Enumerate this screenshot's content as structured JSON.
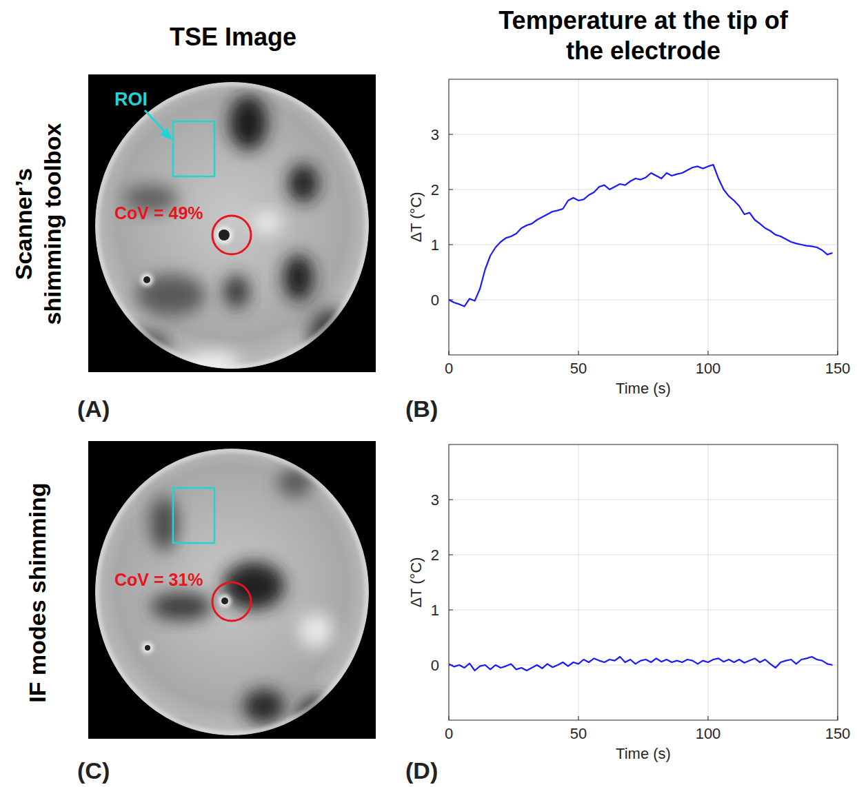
{
  "column_titles": [
    "TSE Image",
    "Temperature at the tip of the electrode"
  ],
  "row_labels": [
    "Scanner’s shimming toolbox",
    "IF modes shimming"
  ],
  "panel_labels": [
    "(A)",
    "(B)",
    "(C)",
    "(D)"
  ],
  "images": [
    {
      "roi_label": "ROI",
      "cov_label": "CoV = 49%"
    },
    {
      "cov_label": "CoV = 31%"
    }
  ],
  "chart_data": [
    {
      "type": "line",
      "x_label": "Time (s)",
      "y_label": "ΔT (°C)",
      "xlim": [
        0,
        150
      ],
      "ylim": [
        -1,
        4
      ],
      "xticks": [
        0,
        50,
        100,
        150
      ],
      "yticks": [
        0,
        1,
        2,
        3
      ],
      "grid": true,
      "color": "#1a1aff",
      "x": [
        0,
        2,
        4,
        6,
        8,
        10,
        12,
        14,
        16,
        18,
        20,
        22,
        24,
        26,
        28,
        30,
        32,
        34,
        36,
        38,
        40,
        42,
        44,
        46,
        48,
        50,
        52,
        54,
        56,
        58,
        60,
        62,
        64,
        66,
        68,
        70,
        72,
        74,
        76,
        78,
        80,
        82,
        84,
        86,
        88,
        90,
        92,
        94,
        96,
        98,
        100,
        102,
        104,
        106,
        108,
        110,
        112,
        114,
        116,
        118,
        120,
        122,
        124,
        126,
        128,
        130,
        132,
        134,
        136,
        138,
        140,
        142,
        144,
        146,
        148
      ],
      "values": [
        0.0,
        -0.05,
        -0.08,
        -0.12,
        0.02,
        -0.02,
        0.2,
        0.55,
        0.8,
        0.95,
        1.05,
        1.12,
        1.15,
        1.2,
        1.3,
        1.35,
        1.38,
        1.45,
        1.5,
        1.55,
        1.6,
        1.62,
        1.65,
        1.8,
        1.85,
        1.8,
        1.82,
        1.9,
        1.95,
        2.05,
        2.08,
        2.0,
        2.05,
        2.1,
        2.08,
        2.15,
        2.2,
        2.18,
        2.22,
        2.3,
        2.25,
        2.2,
        2.3,
        2.25,
        2.28,
        2.3,
        2.35,
        2.4,
        2.42,
        2.38,
        2.42,
        2.45,
        2.2,
        2.0,
        1.88,
        1.8,
        1.7,
        1.55,
        1.58,
        1.45,
        1.38,
        1.3,
        1.25,
        1.18,
        1.15,
        1.1,
        1.05,
        1.02,
        1.0,
        0.98,
        0.97,
        0.95,
        0.9,
        0.82,
        0.85
      ]
    },
    {
      "type": "line",
      "x_label": "Time (s)",
      "y_label": "ΔT (°C)",
      "xlim": [
        0,
        150
      ],
      "ylim": [
        -1,
        4
      ],
      "xticks": [
        0,
        50,
        100,
        150
      ],
      "yticks": [
        0,
        1,
        2,
        3
      ],
      "grid": true,
      "color": "#1a1aff",
      "x": [
        0,
        2,
        4,
        6,
        8,
        10,
        12,
        14,
        16,
        18,
        20,
        22,
        24,
        26,
        28,
        30,
        32,
        34,
        36,
        38,
        40,
        42,
        44,
        46,
        48,
        50,
        52,
        54,
        56,
        58,
        60,
        62,
        64,
        66,
        68,
        70,
        72,
        74,
        76,
        78,
        80,
        82,
        84,
        86,
        88,
        90,
        92,
        94,
        96,
        98,
        100,
        102,
        104,
        106,
        108,
        110,
        112,
        114,
        116,
        118,
        120,
        122,
        124,
        126,
        128,
        130,
        132,
        134,
        136,
        138,
        140,
        142,
        144,
        146,
        148
      ],
      "values": [
        0.02,
        -0.03,
        0.0,
        -0.05,
        0.03,
        -0.1,
        -0.02,
        0.0,
        -0.08,
        0.0,
        -0.05,
        -0.02,
        0.02,
        -0.08,
        -0.05,
        -0.1,
        -0.05,
        0.0,
        -0.06,
        0.02,
        -0.04,
        0.0,
        0.05,
        -0.02,
        0.05,
        0.02,
        0.1,
        0.05,
        0.12,
        0.08,
        0.05,
        0.1,
        0.08,
        0.15,
        0.05,
        0.1,
        0.02,
        0.08,
        0.1,
        0.05,
        0.12,
        0.06,
        0.1,
        0.05,
        0.08,
        0.05,
        0.1,
        0.08,
        0.02,
        0.08,
        0.05,
        0.1,
        0.12,
        0.06,
        0.1,
        0.05,
        0.1,
        0.04,
        0.08,
        0.12,
        0.05,
        0.1,
        0.02,
        -0.05,
        0.05,
        0.08,
        0.1,
        0.02,
        0.1,
        0.12,
        0.15,
        0.1,
        0.08,
        0.02,
        0.0
      ]
    }
  ]
}
